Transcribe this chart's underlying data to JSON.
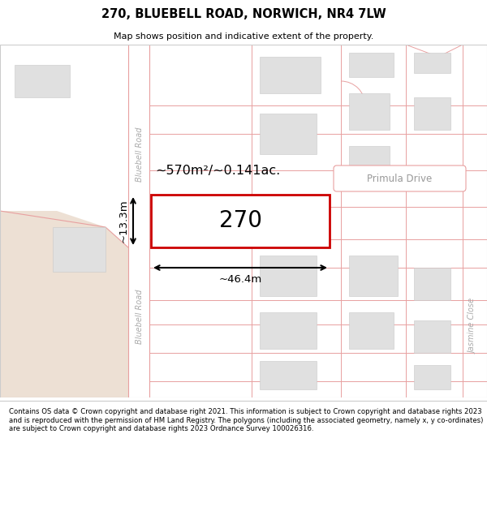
{
  "title": "270, BLUEBELL ROAD, NORWICH, NR4 7LW",
  "subtitle": "Map shows position and indicative extent of the property.",
  "footer": "Contains OS data © Crown copyright and database right 2021. This information is subject to Crown copyright and database rights 2023 and is reproduced with the permission of HM Land Registry. The polygons (including the associated geometry, namely x, y co-ordinates) are subject to Crown copyright and database rights 2023 Ordnance Survey 100026316.",
  "map_bg": "#f7f4f0",
  "plot_border_color": "#cc0000",
  "road_line_color": "#e8a0a0",
  "building_fill": "#e0e0e0",
  "building_stroke": "#c8c8c8",
  "highlight_fill": "#ffffff",
  "tan_area": "#ede0d4",
  "label_270": "270",
  "area_label": "~570m²/~0.141ac.",
  "dim_width": "~46.4m",
  "dim_height": "~13.3m",
  "road_label_top": "Bluebell Road",
  "road_label_bottom": "Bluebell Road",
  "street_label_primula": "Primula Drive",
  "street_label_jasmine": "Jasmine Close"
}
